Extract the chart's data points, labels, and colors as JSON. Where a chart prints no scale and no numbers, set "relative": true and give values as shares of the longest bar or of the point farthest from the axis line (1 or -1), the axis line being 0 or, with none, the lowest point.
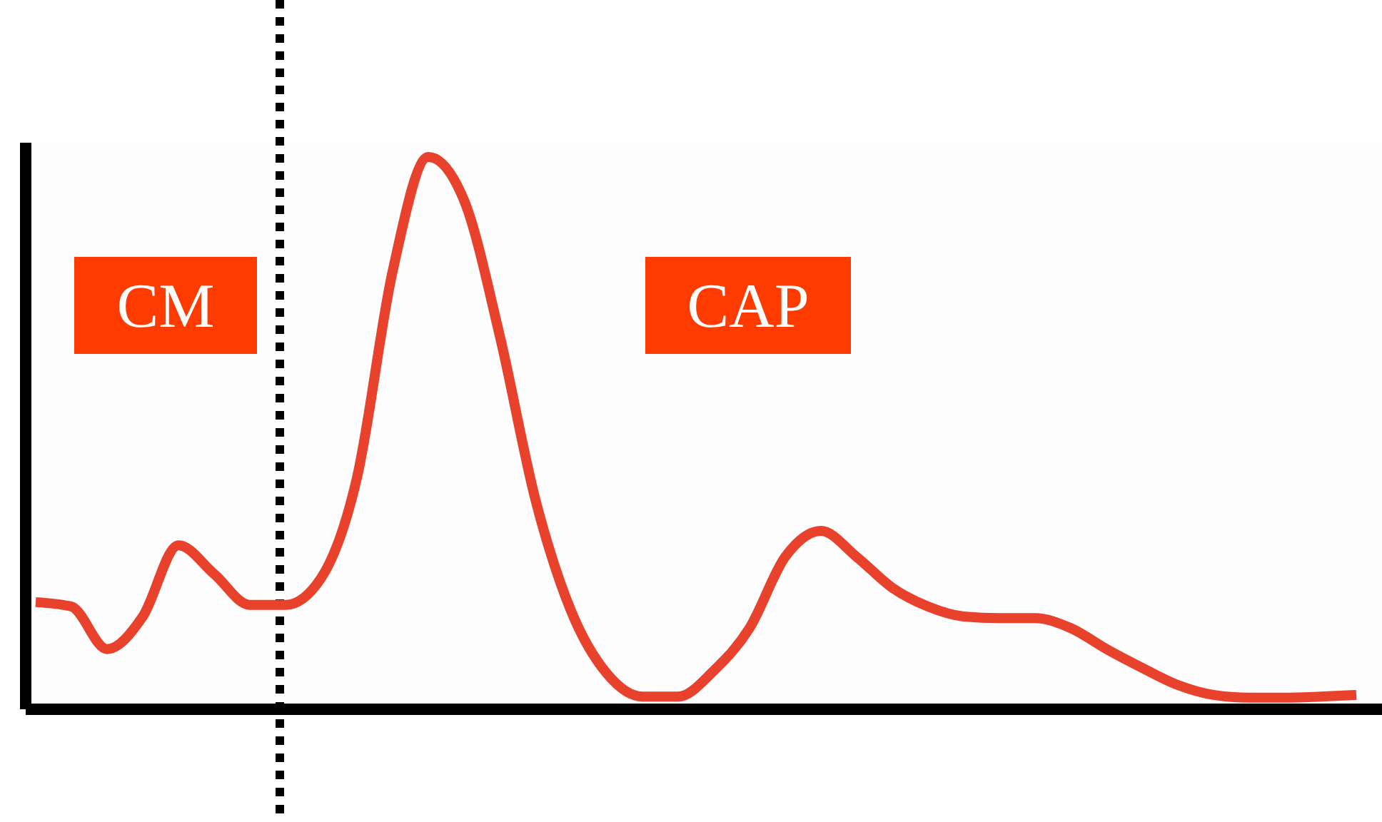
{
  "chart_data": {
    "type": "line",
    "relative": true,
    "categories": [
      null,
      null,
      null,
      null,
      null,
      null,
      null,
      null,
      null,
      null,
      null,
      null,
      null,
      null,
      null,
      null,
      null,
      null,
      null,
      null,
      null,
      null,
      null,
      null,
      null,
      null,
      null,
      null,
      null,
      null,
      null,
      null,
      null,
      null,
      null,
      null,
      null,
      null
    ],
    "series": [
      {
        "color": "#e8412c",
        "values": [
          0.194,
          0.186,
          0.109,
          0.168,
          0.297,
          0.245,
          0.189,
          0.189,
          0.238,
          0.419,
          0.793,
          1,
          0.922,
          0.677,
          0.38,
          0.178,
          0.065,
          0.023,
          0.023,
          0.07,
          0.147,
          0.276,
          0.323,
          0.276,
          0.22,
          0.186,
          0.168,
          0.165,
          0.165,
          0.147,
          0.109,
          0.075,
          0.044,
          0.026,
          0.021,
          0.021,
          0.023,
          0.026
        ]
      }
    ],
    "annotations": [
      "CM",
      "CAP"
    ],
    "marker": "none",
    "line_style": "solid"
  }
}
